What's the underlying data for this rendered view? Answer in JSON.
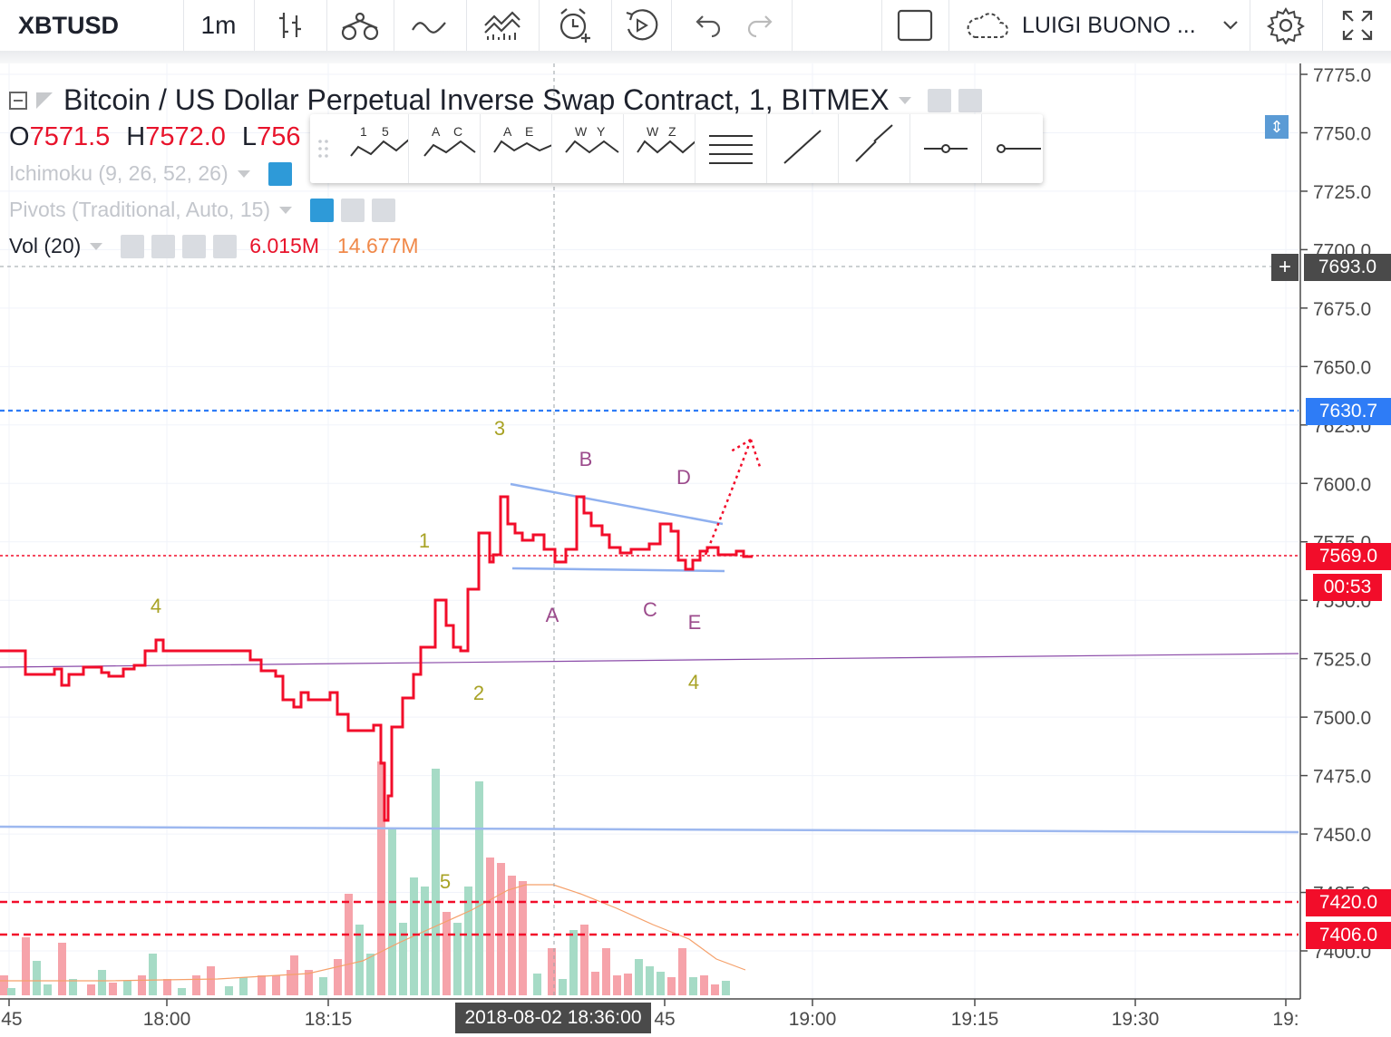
{
  "toolbar": {
    "symbol": "XBTUSD",
    "interval": "1m",
    "account": "LUIGI BUONO ...",
    "icons": [
      "bar-style-icon",
      "indicators-icon",
      "compare-icon",
      "templates-icon",
      "alert-icon",
      "replay-icon",
      "undo-icon",
      "redo-icon",
      "layout-icon",
      "cloud-icon",
      "settings-icon",
      "fullscreen-icon"
    ]
  },
  "legend": {
    "title": "Bitcoin / US Dollar Perpetual Inverse Swap Contract, 1, BITMEX",
    "o_label": "O",
    "o_value": "7571.5",
    "h_label": "H",
    "h_value": "7572.0",
    "l_label": "L",
    "l_value": "756",
    "ichimoku": "Ichimoku (9, 26, 52, 26)",
    "pivots": "Pivots (Traditional, Auto, 15)",
    "vol": "Vol (20)",
    "vol_value": "6.015M",
    "vol_ma": "14.677M"
  },
  "drawing_toolbar": {
    "tools": [
      {
        "name": "elliott-impulse-icon",
        "labels": [
          "1",
          "5"
        ]
      },
      {
        "name": "elliott-correction-icon",
        "labels": [
          "A",
          "C"
        ]
      },
      {
        "name": "elliott-triangle-icon",
        "labels": [
          "A",
          "E"
        ]
      },
      {
        "name": "elliott-double-combo-icon",
        "labels": [
          "W",
          "Y"
        ]
      },
      {
        "name": "elliott-triple-combo-icon",
        "labels": [
          "W",
          "Z"
        ]
      },
      {
        "name": "horizontal-lines-icon",
        "labels": []
      },
      {
        "name": "trend-line-icon",
        "labels": []
      },
      {
        "name": "parallel-line-icon",
        "labels": []
      },
      {
        "name": "horizontal-ray-icon",
        "labels": []
      },
      {
        "name": "horizontal-line-icon",
        "labels": []
      }
    ]
  },
  "price_axis": {
    "ticks": [
      "7775.0",
      "7750.0",
      "7725.0",
      "7700.0",
      "7675.0",
      "7650.0",
      "7625.0",
      "7600.0",
      "7575.0",
      "7550.0",
      "7525.0",
      "7500.0",
      "7475.0",
      "7450.0",
      "7425.0",
      "7400.0"
    ],
    "crosshair_price": "7693.0",
    "line_blue_label": "7630.7",
    "last_price": "7569.0",
    "countdown": "00:53",
    "line_red_1": "7420.0",
    "line_red_2": "7406.0",
    "colors": {
      "blue": "#2e7cf6",
      "red": "#f20d2a",
      "dark": "#4a4a4a"
    }
  },
  "time_axis": {
    "ticks": [
      ":45",
      "18:00",
      "18:15",
      "45",
      "19:00",
      "19:15",
      "19:30",
      "19:"
    ],
    "crosshair_time": "2018-08-02 18:36:00"
  },
  "wave_labels": [
    {
      "text": "4",
      "color": "#a8a224"
    },
    {
      "text": "1",
      "color": "#a8a224"
    },
    {
      "text": "2",
      "color": "#a8a224"
    },
    {
      "text": "3",
      "color": "#a8a224"
    },
    {
      "text": "5",
      "color": "#a8a224"
    },
    {
      "text": "4",
      "color": "#a8a224"
    },
    {
      "text": "A",
      "color": "#9c4b8c"
    },
    {
      "text": "B",
      "color": "#9c4b8c"
    },
    {
      "text": "C",
      "color": "#9c4b8c"
    },
    {
      "text": "D",
      "color": "#9c4b8c"
    },
    {
      "text": "E",
      "color": "#9c4b8c"
    }
  ]
}
